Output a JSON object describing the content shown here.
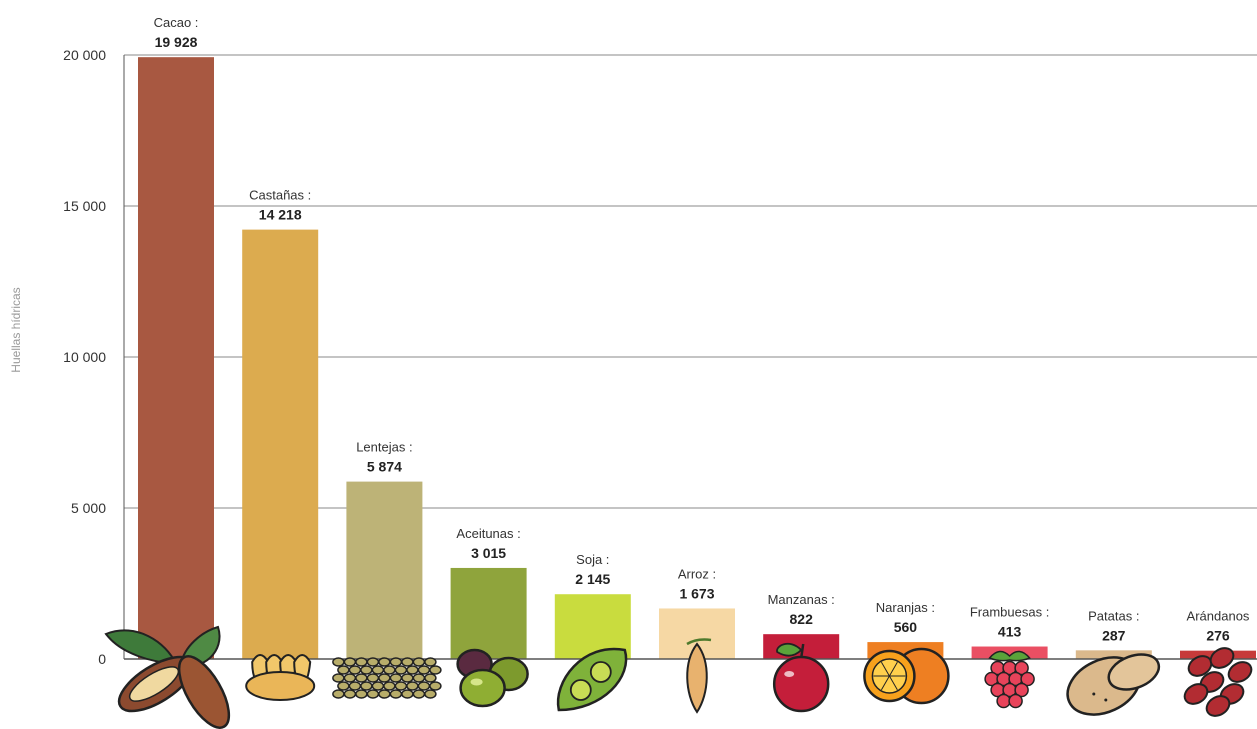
{
  "chart_data": {
    "type": "bar",
    "ylabel": "Huellas hídricas",
    "ylim": [
      0,
      20000
    ],
    "yticks": [
      0,
      5000,
      10000,
      15000,
      20000
    ],
    "ytick_labels": [
      "0",
      "5 000",
      "10 000",
      "15 000",
      "20 000"
    ],
    "grid": true,
    "categories": [
      "Cacao :",
      "Castañas :",
      "Lentejas :",
      "Aceitunas :",
      "Soja :",
      "Arroz :",
      "Manzanas :",
      "Naranjas :",
      "Frambuesas :",
      "Patatas :",
      "Arándanos"
    ],
    "values": [
      19928,
      14218,
      5874,
      3015,
      2145,
      1673,
      822,
      560,
      413,
      287,
      276
    ],
    "value_labels": [
      "19 928",
      "14 218",
      "5 874",
      "3 015",
      "2 145",
      "1 673",
      "822",
      "560",
      "413",
      "287",
      "276"
    ],
    "colors": [
      "#a85841",
      "#dcab4f",
      "#bdb377",
      "#8fa43c",
      "#c9dc3e",
      "#f6d8a4",
      "#c41e3a",
      "#ee7f22",
      "#ea4f63",
      "#dbb98c",
      "#c73a3a"
    ],
    "icons": [
      "cacao-icon",
      "chestnut-icon",
      "lentils-icon",
      "olives-icon",
      "soybean-icon",
      "rice-icon",
      "apple-icon",
      "orange-icon",
      "raspberry-icon",
      "potato-icon",
      "cranberry-icon"
    ]
  }
}
